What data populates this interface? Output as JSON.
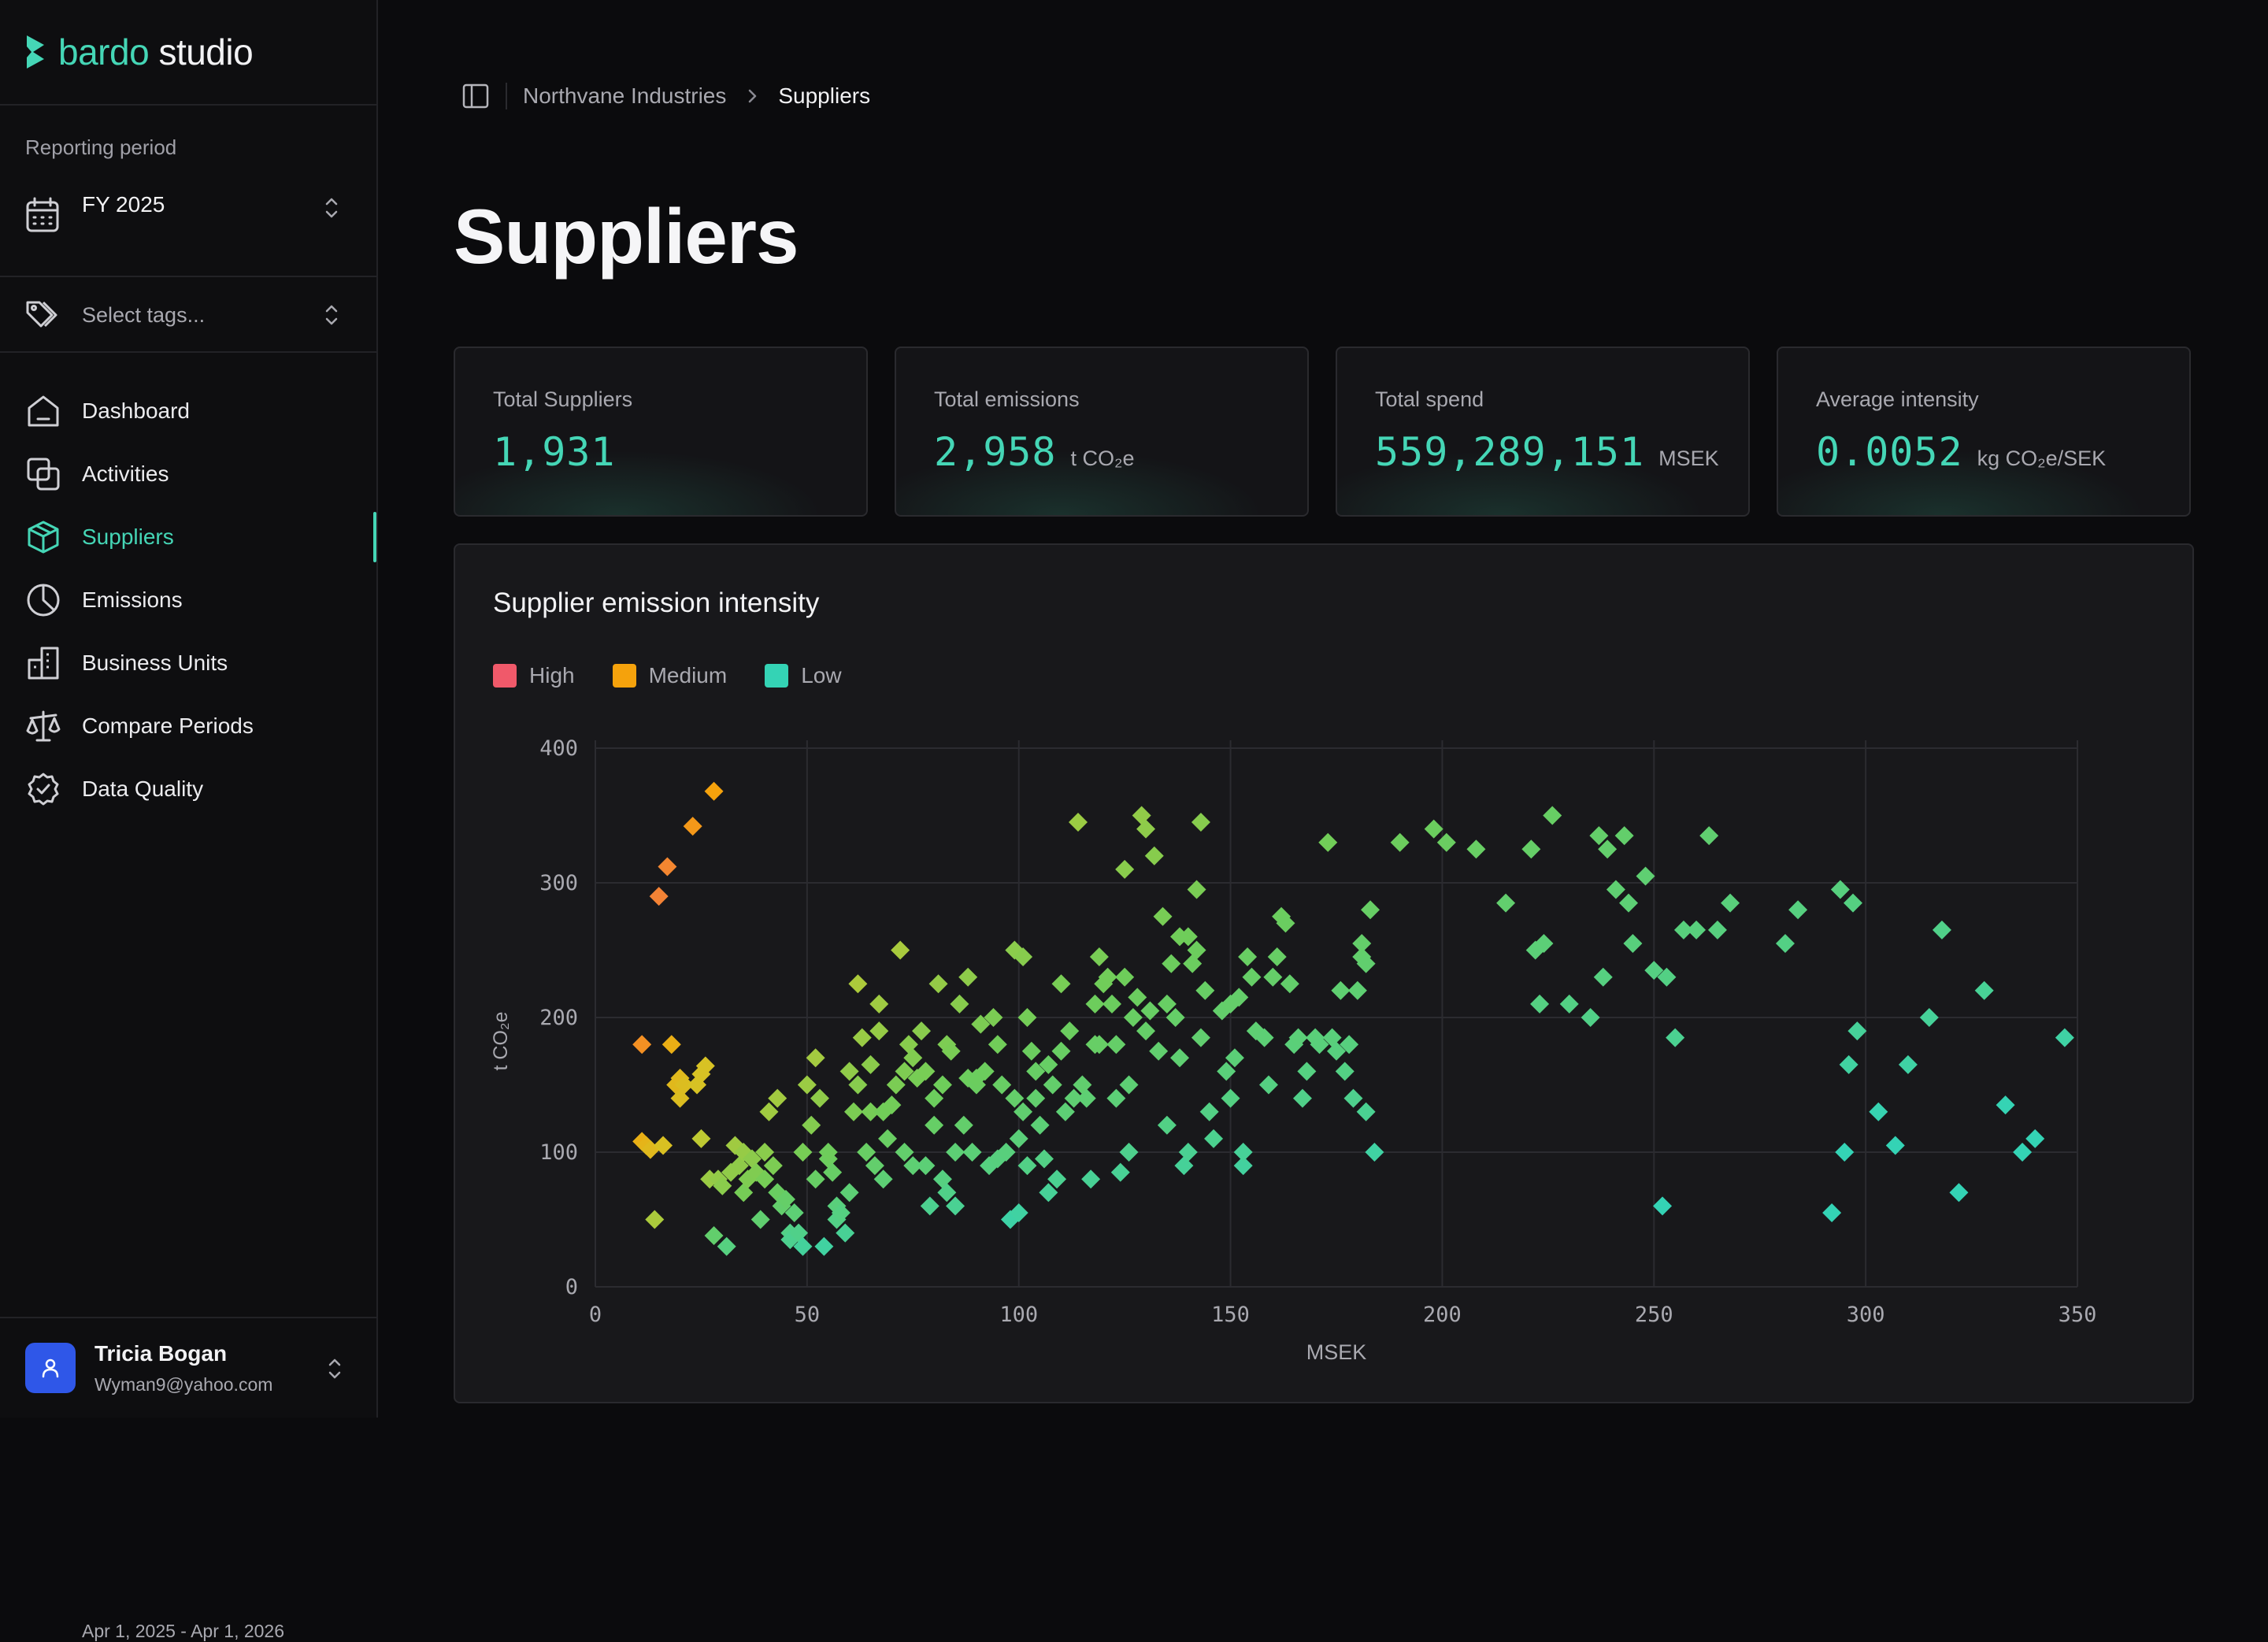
{
  "app": {
    "logo_bardo": "bardo",
    "logo_studio": "studio"
  },
  "sidebar": {
    "period_label": "Reporting period",
    "period_name": "FY 2025",
    "period_range": "Apr 1, 2025 - Apr 1, 2026",
    "tags_placeholder": "Select tags...",
    "nav": [
      {
        "label": "Dashboard",
        "icon": "home-icon"
      },
      {
        "label": "Activities",
        "icon": "layers-icon"
      },
      {
        "label": "Suppliers",
        "icon": "box-icon",
        "active": true
      },
      {
        "label": "Emissions",
        "icon": "pie-chart-icon"
      },
      {
        "label": "Business Units",
        "icon": "building-icon"
      },
      {
        "label": "Compare Periods",
        "icon": "scale-icon"
      },
      {
        "label": "Data Quality",
        "icon": "badge-check-icon"
      }
    ],
    "user": {
      "name": "Tricia Bogan",
      "email": "Wyman9@yahoo.com"
    }
  },
  "breadcrumb": {
    "parent": "Northvane Industries",
    "current": "Suppliers"
  },
  "page_title": "Suppliers",
  "stats": [
    {
      "label": "Total Suppliers",
      "value": "1,931",
      "unit": ""
    },
    {
      "label": "Total emissions",
      "value": "2,958",
      "unit": "t CO₂e"
    },
    {
      "label": "Total spend",
      "value": "559,289,151",
      "unit": "MSEK"
    },
    {
      "label": "Average intensity",
      "value": "0.0052",
      "unit": "kg CO₂e/SEK"
    }
  ],
  "colors": {
    "accent": "#45d6b6",
    "high": "#f0596a",
    "medium": "#f5a20c",
    "low": "#34d3b5"
  },
  "chart_title": "Supplier emission intensity",
  "legend": [
    {
      "label": "High",
      "color": "#f0596a"
    },
    {
      "label": "Medium",
      "color": "#f5a20c"
    },
    {
      "label": "Low",
      "color": "#34d3b5"
    }
  ],
  "chart_data": {
    "type": "scatter",
    "title": "Supplier emission intensity",
    "xlabel": "MSEK",
    "ylabel": "t CO₂e",
    "xlim": [
      0,
      350
    ],
    "ylim": [
      0,
      400
    ],
    "xticks": [
      0,
      50,
      100,
      150,
      200,
      250,
      300,
      350
    ],
    "yticks": [
      0,
      100,
      200,
      300,
      400
    ],
    "grid": true,
    "legend_position": "top-left",
    "points": [
      [
        11,
        108
      ],
      [
        12,
        105
      ],
      [
        13,
        102
      ],
      [
        11,
        180
      ],
      [
        14,
        50
      ],
      [
        15,
        290
      ],
      [
        16,
        105
      ],
      [
        17,
        312
      ],
      [
        18,
        180
      ],
      [
        19,
        150
      ],
      [
        20,
        155
      ],
      [
        20,
        140
      ],
      [
        21,
        150
      ],
      [
        23,
        342
      ],
      [
        24,
        150
      ],
      [
        25,
        110
      ],
      [
        25,
        158
      ],
      [
        26,
        164
      ],
      [
        27,
        80
      ],
      [
        28,
        38
      ],
      [
        28,
        368
      ],
      [
        29,
        80
      ],
      [
        30,
        75
      ],
      [
        31,
        30
      ],
      [
        32,
        85
      ],
      [
        33,
        105
      ],
      [
        34,
        90
      ],
      [
        35,
        70
      ],
      [
        35,
        100
      ],
      [
        36,
        80
      ],
      [
        37,
        95
      ],
      [
        38,
        85
      ],
      [
        39,
        50
      ],
      [
        40,
        100
      ],
      [
        40,
        80
      ],
      [
        41,
        130
      ],
      [
        42,
        90
      ],
      [
        43,
        70
      ],
      [
        43,
        140
      ],
      [
        44,
        60
      ],
      [
        45,
        65
      ],
      [
        46,
        40
      ],
      [
        46,
        35
      ],
      [
        47,
        55
      ],
      [
        48,
        40
      ],
      [
        49,
        30
      ],
      [
        49,
        100
      ],
      [
        50,
        150
      ],
      [
        51,
        120
      ],
      [
        52,
        170
      ],
      [
        52,
        80
      ],
      [
        53,
        140
      ],
      [
        54,
        30
      ],
      [
        55,
        95
      ],
      [
        55,
        100
      ],
      [
        56,
        85
      ],
      [
        57,
        60
      ],
      [
        57,
        50
      ],
      [
        58,
        55
      ],
      [
        59,
        40
      ],
      [
        60,
        160
      ],
      [
        60,
        70
      ],
      [
        61,
        130
      ],
      [
        62,
        150
      ],
      [
        62,
        225
      ],
      [
        63,
        185
      ],
      [
        64,
        100
      ],
      [
        65,
        130
      ],
      [
        65,
        165
      ],
      [
        66,
        90
      ],
      [
        67,
        210
      ],
      [
        67,
        190
      ],
      [
        68,
        80
      ],
      [
        68,
        130
      ],
      [
        69,
        110
      ],
      [
        70,
        135
      ],
      [
        71,
        150
      ],
      [
        72,
        250
      ],
      [
        73,
        160
      ],
      [
        73,
        100
      ],
      [
        74,
        180
      ],
      [
        75,
        90
      ],
      [
        75,
        170
      ],
      [
        76,
        155
      ],
      [
        77,
        190
      ],
      [
        78,
        90
      ],
      [
        78,
        160
      ],
      [
        79,
        60
      ],
      [
        80,
        120
      ],
      [
        80,
        140
      ],
      [
        81,
        225
      ],
      [
        82,
        80
      ],
      [
        82,
        150
      ],
      [
        83,
        70
      ],
      [
        83,
        180
      ],
      [
        84,
        175
      ],
      [
        85,
        60
      ],
      [
        85,
        100
      ],
      [
        86,
        210
      ],
      [
        87,
        120
      ],
      [
        88,
        155
      ],
      [
        88,
        230
      ],
      [
        89,
        100
      ],
      [
        90,
        150
      ],
      [
        90,
        155
      ],
      [
        91,
        195
      ],
      [
        92,
        160
      ],
      [
        93,
        90
      ],
      [
        94,
        200
      ],
      [
        95,
        180
      ],
      [
        95,
        95
      ],
      [
        96,
        150
      ],
      [
        97,
        100
      ],
      [
        98,
        50
      ],
      [
        99,
        140
      ],
      [
        99,
        250
      ],
      [
        100,
        55
      ],
      [
        100,
        110
      ],
      [
        101,
        245
      ],
      [
        101,
        130
      ],
      [
        102,
        90
      ],
      [
        102,
        200
      ],
      [
        103,
        175
      ],
      [
        104,
        160
      ],
      [
        104,
        140
      ],
      [
        105,
        120
      ],
      [
        106,
        95
      ],
      [
        107,
        70
      ],
      [
        107,
        165
      ],
      [
        108,
        150
      ],
      [
        109,
        80
      ],
      [
        110,
        175
      ],
      [
        110,
        225
      ],
      [
        111,
        130
      ],
      [
        112,
        190
      ],
      [
        113,
        140
      ],
      [
        114,
        345
      ],
      [
        115,
        150
      ],
      [
        116,
        140
      ],
      [
        117,
        80
      ],
      [
        118,
        180
      ],
      [
        118,
        210
      ],
      [
        119,
        180
      ],
      [
        119,
        245
      ],
      [
        120,
        225
      ],
      [
        121,
        230
      ],
      [
        122,
        210
      ],
      [
        123,
        180
      ],
      [
        123,
        140
      ],
      [
        124,
        85
      ],
      [
        125,
        310
      ],
      [
        125,
        230
      ],
      [
        126,
        100
      ],
      [
        126,
        150
      ],
      [
        127,
        200
      ],
      [
        128,
        215
      ],
      [
        129,
        350
      ],
      [
        130,
        190
      ],
      [
        130,
        340
      ],
      [
        131,
        205
      ],
      [
        132,
        320
      ],
      [
        133,
        175
      ],
      [
        134,
        275
      ],
      [
        135,
        210
      ],
      [
        135,
        120
      ],
      [
        136,
        240
      ],
      [
        137,
        200
      ],
      [
        138,
        260
      ],
      [
        138,
        170
      ],
      [
        139,
        90
      ],
      [
        140,
        100
      ],
      [
        140,
        260
      ],
      [
        141,
        240
      ],
      [
        142,
        295
      ],
      [
        142,
        250
      ],
      [
        143,
        185
      ],
      [
        143,
        345
      ],
      [
        144,
        220
      ],
      [
        145,
        130
      ],
      [
        146,
        110
      ],
      [
        148,
        205
      ],
      [
        149,
        160
      ],
      [
        150,
        210
      ],
      [
        150,
        140
      ],
      [
        151,
        170
      ],
      [
        152,
        215
      ],
      [
        153,
        90
      ],
      [
        153,
        100
      ],
      [
        154,
        245
      ],
      [
        155,
        230
      ],
      [
        156,
        190
      ],
      [
        158,
        185
      ],
      [
        159,
        150
      ],
      [
        160,
        230
      ],
      [
        161,
        245
      ],
      [
        162,
        275
      ],
      [
        163,
        270
      ],
      [
        164,
        225
      ],
      [
        165,
        180
      ],
      [
        166,
        185
      ],
      [
        167,
        140
      ],
      [
        168,
        160
      ],
      [
        170,
        185
      ],
      [
        171,
        180
      ],
      [
        173,
        330
      ],
      [
        174,
        185
      ],
      [
        175,
        175
      ],
      [
        176,
        220
      ],
      [
        177,
        160
      ],
      [
        178,
        180
      ],
      [
        179,
        140
      ],
      [
        180,
        220
      ],
      [
        181,
        245
      ],
      [
        181,
        255
      ],
      [
        182,
        240
      ],
      [
        182,
        130
      ],
      [
        183,
        280
      ],
      [
        184,
        100
      ],
      [
        190,
        330
      ],
      [
        198,
        340
      ],
      [
        201,
        330
      ],
      [
        208,
        325
      ],
      [
        215,
        285
      ],
      [
        221,
        325
      ],
      [
        222,
        250
      ],
      [
        223,
        210
      ],
      [
        224,
        255
      ],
      [
        226,
        350
      ],
      [
        230,
        210
      ],
      [
        235,
        200
      ],
      [
        237,
        335
      ],
      [
        238,
        230
      ],
      [
        239,
        325
      ],
      [
        241,
        295
      ],
      [
        243,
        335
      ],
      [
        244,
        285
      ],
      [
        245,
        255
      ],
      [
        248,
        305
      ],
      [
        250,
        235
      ],
      [
        252,
        60
      ],
      [
        253,
        230
      ],
      [
        255,
        185
      ],
      [
        257,
        265
      ],
      [
        260,
        265
      ],
      [
        263,
        335
      ],
      [
        265,
        265
      ],
      [
        268,
        285
      ],
      [
        281,
        255
      ],
      [
        284,
        280
      ],
      [
        292,
        55
      ],
      [
        294,
        295
      ],
      [
        295,
        100
      ],
      [
        296,
        165
      ],
      [
        297,
        285
      ],
      [
        298,
        190
      ],
      [
        303,
        130
      ],
      [
        307,
        105
      ],
      [
        310,
        165
      ],
      [
        315,
        200
      ],
      [
        318,
        265
      ],
      [
        322,
        70
      ],
      [
        328,
        220
      ],
      [
        333,
        135
      ],
      [
        337,
        100
      ],
      [
        340,
        110
      ],
      [
        347,
        185
      ]
    ]
  }
}
